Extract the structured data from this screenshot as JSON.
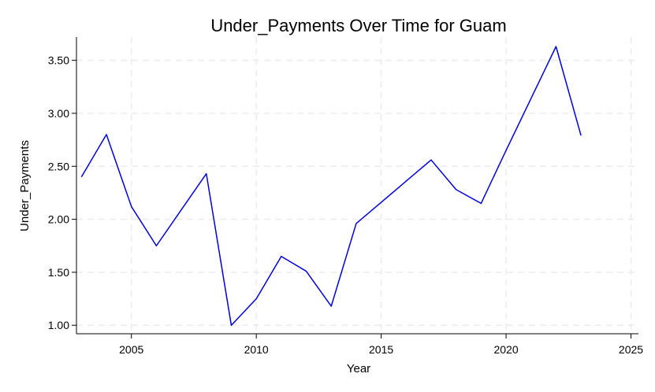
{
  "chart_data": {
    "type": "line",
    "title": "Under_Payments Over Time for Guam",
    "xlabel": "Year",
    "ylabel": "Under_Payments",
    "xlim": [
      2002.8,
      2025.3
    ],
    "ylim": [
      0.92,
      3.72
    ],
    "xticks": [
      2005,
      2010,
      2015,
      2020,
      2025
    ],
    "yticks": [
      1.0,
      1.5,
      2.0,
      2.5,
      3.0,
      3.5
    ],
    "ytick_labels": [
      "1.00",
      "1.50",
      "2.00",
      "2.50",
      "3.00",
      "3.50"
    ],
    "grid": true,
    "series": [
      {
        "color": "#0000dd",
        "x": [
          2003,
          2004,
          2005,
          2006,
          2007,
          2008,
          2009,
          2010,
          2011,
          2012,
          2013,
          2014,
          2015,
          2016,
          2017,
          2018,
          2019,
          2020,
          2021,
          2022,
          2023
        ],
        "y": [
          2.4,
          2.8,
          2.12,
          1.75,
          2.09,
          2.43,
          1.0,
          1.25,
          1.65,
          1.51,
          1.18,
          1.96,
          2.16,
          2.36,
          2.56,
          2.28,
          2.15,
          2.65,
          3.14,
          3.63,
          2.79
        ]
      }
    ]
  }
}
